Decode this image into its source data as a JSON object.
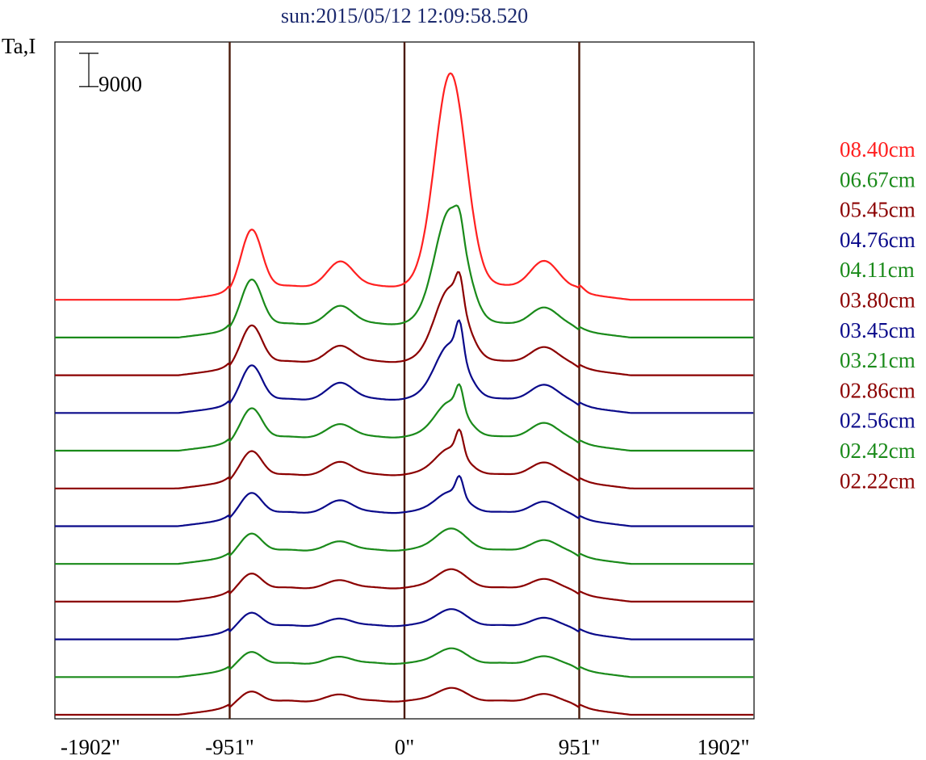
{
  "chart_data": {
    "type": "line",
    "title": "sun:2015/05/12 12:09:58.520",
    "title_color": "#1c2a6e",
    "ylabel": "Ta,I",
    "xlabel": "",
    "x_tick_labels": [
      "-1902\"",
      "-951\"",
      "0\"",
      "951\"",
      "1902\""
    ],
    "x_ticks": [
      -1902,
      -951,
      0,
      951,
      1902
    ],
    "xlim": [
      -1902,
      1902
    ],
    "ylim": [
      0,
      183000
    ],
    "vertical_lines_at": [
      -951,
      0,
      951
    ],
    "vertical_line_color": "#4a1a0a",
    "scale_bar": {
      "label": "9000",
      "value": 9000
    },
    "legend_placement": "right",
    "plot_frame": true,
    "grid": false,
    "series": [
      {
        "name": "08.40cm",
        "color": "#ff2020",
        "offset": 112200,
        "shape": {
          "limbL": 0,
          "peakL": 15300,
          "midL": 6700,
          "cen": 57500,
          "cenPeak": 2,
          "peakR": 6700,
          "limbR": 1000
        }
      },
      {
        "name": "06.67cm",
        "color": "#1a8a1a",
        "offset": 102000,
        "shape": {
          "limbL": 0,
          "peakL": 12000,
          "midL": 4900,
          "cen": 31000,
          "cenPeak": 4500,
          "peakR": 4300,
          "limbR": 0
        }
      },
      {
        "name": "05.45cm",
        "color": "#8b0000",
        "offset": 91800,
        "shape": {
          "limbL": 0,
          "peakL": 9800,
          "midL": 4300,
          "cen": 20000,
          "cenPeak": 7000,
          "peakR": 3800,
          "limbR": 0
        }
      },
      {
        "name": "04.76cm",
        "color": "#0a0a8a",
        "offset": 81600,
        "shape": {
          "limbL": 0,
          "peakL": 9200,
          "midL": 4500,
          "cen": 15000,
          "cenPeak": 8500,
          "peakR": 3800,
          "limbR": 0
        }
      },
      {
        "name": "04.11cm",
        "color": "#1a8a1a",
        "offset": 71400,
        "shape": {
          "limbL": 0,
          "peakL": 7800,
          "midL": 3500,
          "cen": 9600,
          "cenPeak": 6000,
          "peakR": 3700,
          "limbR": 0
        }
      },
      {
        "name": "03.80cm",
        "color": "#8b0000",
        "offset": 61200,
        "shape": {
          "limbL": 0,
          "peakL": 6400,
          "midL": 3500,
          "cen": 7200,
          "cenPeak": 6000,
          "peakR": 3200,
          "limbR": 0
        }
      },
      {
        "name": "03.45cm",
        "color": "#0a0a8a",
        "offset": 51000,
        "shape": {
          "limbL": 0,
          "peakL": 5300,
          "midL": 3300,
          "cen": 5600,
          "cenPeak": 5000,
          "peakR": 2800,
          "limbR": 0
        }
      },
      {
        "name": "03.21cm",
        "color": "#1a8a1a",
        "offset": 40800,
        "shape": {
          "limbL": 0,
          "peakL": 4500,
          "midL": 2400,
          "cen": 5800,
          "cenPeak": 0,
          "peakR": 2600,
          "limbR": 0
        }
      },
      {
        "name": "02.86cm",
        "color": "#8b0000",
        "offset": 30600,
        "shape": {
          "limbL": 0,
          "peakL": 3900,
          "midL": 2100,
          "cen": 5000,
          "cenPeak": 0,
          "peakR": 2300,
          "limbR": 0
        }
      },
      {
        "name": "02.56cm",
        "color": "#0a0a8a",
        "offset": 20400,
        "shape": {
          "limbL": 0,
          "peakL": 3500,
          "midL": 1900,
          "cen": 4400,
          "cenPeak": 0,
          "peakR": 2000,
          "limbR": 0
        }
      },
      {
        "name": "02.42cm",
        "color": "#1a8a1a",
        "offset": 10200,
        "shape": {
          "limbL": 0,
          "peakL": 3100,
          "midL": 1800,
          "cen": 4000,
          "cenPeak": 0,
          "peakR": 1800,
          "limbR": 0
        }
      },
      {
        "name": "02.22cm",
        "color": "#8b0000",
        "offset": 0,
        "shape": {
          "limbL": 0,
          "peakL": 2600,
          "midL": 1800,
          "cen": 3500,
          "cenPeak": 0,
          "peakR": 1800,
          "limbR": 0
        }
      }
    ]
  }
}
